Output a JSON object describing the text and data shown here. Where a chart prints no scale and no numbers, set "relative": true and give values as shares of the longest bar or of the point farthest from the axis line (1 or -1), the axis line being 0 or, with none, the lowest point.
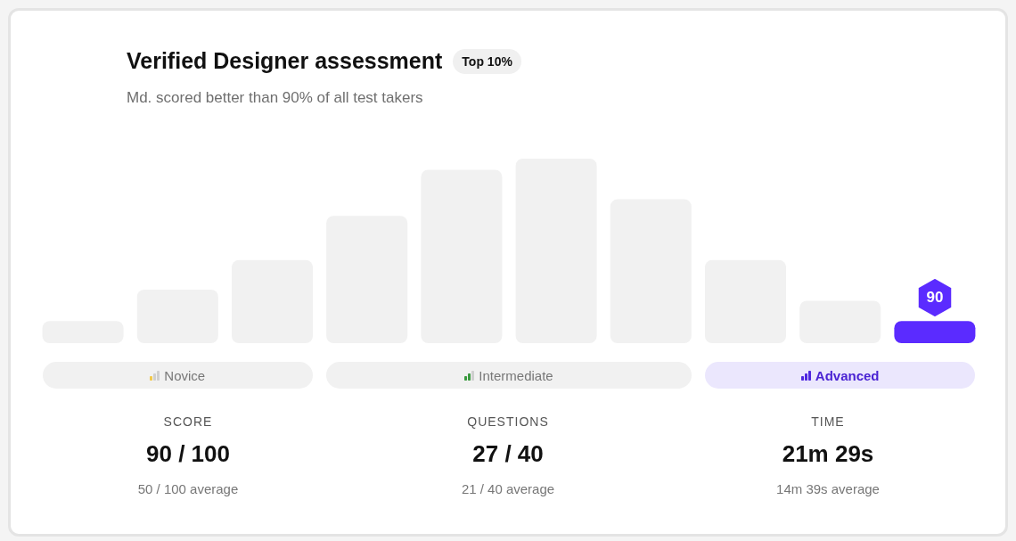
{
  "chart_data": {
    "type": "bar",
    "title": "Verified Designer assessment",
    "subtitle": "Md. scored better than 90% of all test takers",
    "categories": [
      null,
      null,
      null,
      null,
      null,
      null,
      null,
      null,
      null,
      null
    ],
    "values": [
      0.12,
      0.29,
      0.45,
      0.69,
      0.94,
      1,
      0.78,
      0.45,
      0.23,
      0.12
    ],
    "colors": [
      "#f1f1f1",
      "#f1f1f1",
      "#f1f1f1",
      "#f1f1f1",
      "#f1f1f1",
      "#f1f1f1",
      "#f1f1f1",
      "#f1f1f1",
      "#f1f1f1",
      "#5b2bff"
    ],
    "relative": true,
    "annotations": [
      "Top 10%",
      "90",
      "Novice",
      "Intermediate",
      "Advanced",
      "SCORE",
      "90 / 100",
      "50 / 100 average",
      "QUESTIONS",
      "27 / 40",
      "21 / 40 average",
      "TIME",
      "21m 29s",
      "14m 39s average"
    ]
  }
}
